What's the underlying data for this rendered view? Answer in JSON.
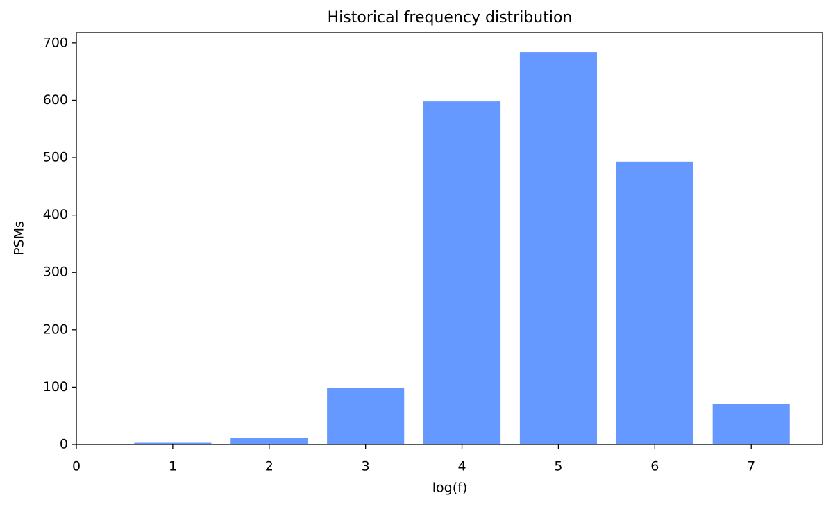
{
  "chart_data": {
    "type": "bar",
    "title": "Historical frequency distribution",
    "x_label": "log(f)",
    "y_label": "PSMs",
    "x": [
      1,
      2,
      3,
      4,
      5,
      6,
      7
    ],
    "values": [
      3,
      11,
      99,
      598,
      684,
      493,
      71
    ],
    "color": "#6699ff",
    "xlim": [
      0,
      7.74
    ],
    "xticks": [
      0,
      1,
      2,
      3,
      4,
      5,
      6,
      7
    ],
    "ylim": [
      0,
      718
    ],
    "yticks": [
      0,
      100,
      200,
      300,
      400,
      500,
      600,
      700
    ],
    "grid": false
  }
}
